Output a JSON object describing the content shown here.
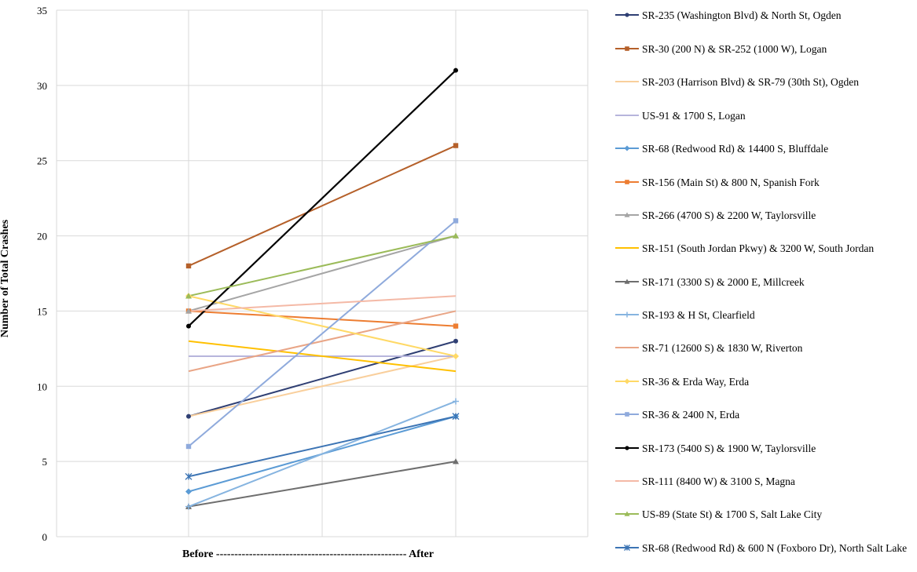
{
  "chart_data": {
    "type": "line",
    "title": "",
    "xlabel": "Before ---------------------------------------------------- After",
    "ylabel": "Number of Total Crashes",
    "x": [
      "Before",
      "After"
    ],
    "ylim": [
      0,
      35
    ],
    "yticks": [
      0,
      5,
      10,
      15,
      20,
      25,
      30,
      35
    ],
    "grid": true,
    "legend_position": "right",
    "series": [
      {
        "name": "SR-235 (Washington Blvd) & North St, Ogden",
        "values": [
          8,
          13
        ],
        "color": "#2f3f73",
        "marker": "circle"
      },
      {
        "name": "SR-30 (200 N) & SR-252 (1000 W), Logan",
        "values": [
          18,
          26
        ],
        "color": "#b5602a",
        "marker": "square"
      },
      {
        "name": "SR-203 (Harrison Blvd) & SR-79 (30th St), Ogden",
        "values": [
          8,
          12
        ],
        "color": "#f9cf9c",
        "marker": "none"
      },
      {
        "name": "US-91 & 1700 S, Logan",
        "values": [
          12,
          12
        ],
        "color": "#b7b5dc",
        "marker": "none"
      },
      {
        "name": "SR-68 (Redwood Rd) & 14400 S, Bluffdale",
        "values": [
          3,
          8
        ],
        "color": "#5b9bd5",
        "marker": "diamond"
      },
      {
        "name": "SR-156 (Main St) & 800 N, Spanish Fork",
        "values": [
          15,
          14
        ],
        "color": "#ed7d31",
        "marker": "square"
      },
      {
        "name": "SR-266 (4700 S) & 2200 W, Taylorsville",
        "values": [
          15,
          20
        ],
        "color": "#a5a5a5",
        "marker": "triangle"
      },
      {
        "name": "SR-151 (South Jordan Pkwy) & 3200 W, South Jordan",
        "values": [
          13,
          11
        ],
        "color": "#ffc000",
        "marker": "none"
      },
      {
        "name": "SR-171 (3300 S) & 2000 E, Millcreek",
        "values": [
          2,
          5
        ],
        "color": "#6e6e6e",
        "marker": "triangle"
      },
      {
        "name": "SR-193 & H St, Clearfield",
        "values": [
          2,
          9
        ],
        "color": "#86b4e0",
        "marker": "plus"
      },
      {
        "name": "SR-71 (12600 S) & 1830 W, Riverton",
        "values": [
          11,
          15
        ],
        "color": "#e9a586",
        "marker": "none"
      },
      {
        "name": "SR-36 & Erda Way, Erda",
        "values": [
          16,
          12
        ],
        "color": "#ffd966",
        "marker": "diamond"
      },
      {
        "name": "SR-36 & 2400 N, Erda",
        "values": [
          6,
          21
        ],
        "color": "#8faadc",
        "marker": "square"
      },
      {
        "name": "SR-173 (5400 S) & 1900 W, Taylorsville",
        "values": [
          14,
          31
        ],
        "color": "#000000",
        "marker": "circle"
      },
      {
        "name": "SR-111 (8400 W) & 3100 S, Magna",
        "values": [
          15,
          16
        ],
        "color": "#f4b9a6",
        "marker": "none"
      },
      {
        "name": "US-89 (State St) & 1700 S, Salt Lake City",
        "values": [
          16,
          20
        ],
        "color": "#9bbb59",
        "marker": "triangle"
      },
      {
        "name": "SR-68 (Redwood Rd) & 600 N (Foxboro Dr), North Salt Lake",
        "values": [
          4,
          8
        ],
        "color": "#3c74b4",
        "marker": "star"
      }
    ]
  }
}
